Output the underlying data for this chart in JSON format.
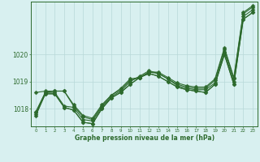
{
  "hours": [
    0,
    1,
    2,
    3,
    4,
    5,
    6,
    7,
    8,
    9,
    10,
    11,
    12,
    13,
    14,
    15,
    16,
    17,
    18,
    19,
    20,
    21,
    22,
    23
  ],
  "series": [
    [
      1017.9,
      1018.6,
      1018.65,
      1018.65,
      1018.1,
      1017.7,
      1017.6,
      1018.1,
      1018.5,
      1018.7,
      1019.05,
      1019.15,
      1019.35,
      1019.3,
      1019.1,
      1018.9,
      1018.8,
      1018.75,
      1018.75,
      1019.05,
      1020.2,
      1019.1,
      1021.5,
      1021.75
    ],
    [
      1017.85,
      1018.6,
      1018.6,
      1018.1,
      1018.05,
      1017.6,
      1017.55,
      1018.05,
      1018.45,
      1018.65,
      1019.0,
      1019.2,
      1019.4,
      1019.3,
      1019.1,
      1018.85,
      1018.75,
      1018.7,
      1018.7,
      1018.95,
      1020.1,
      1019.0,
      1021.4,
      1021.65
    ],
    [
      1017.8,
      1018.55,
      1018.55,
      1018.05,
      1017.95,
      1017.5,
      1017.45,
      1018.0,
      1018.4,
      1018.6,
      1018.9,
      1019.15,
      1019.3,
      1019.2,
      1019.0,
      1018.8,
      1018.7,
      1018.65,
      1018.6,
      1018.9,
      1020.0,
      1018.9,
      1021.3,
      1021.55
    ],
    [
      1018.6,
      1018.65,
      1018.65,
      1018.65,
      1018.15,
      1017.75,
      1017.65,
      1018.15,
      1018.5,
      1018.75,
      1019.1,
      1019.15,
      1019.35,
      1019.35,
      1019.15,
      1018.95,
      1018.85,
      1018.8,
      1018.8,
      1019.1,
      1020.25,
      1019.15,
      1021.55,
      1021.8
    ],
    [
      1017.75,
      1018.55,
      1018.55,
      1018.05,
      1017.95,
      1017.5,
      1017.45,
      1018.0,
      1018.4,
      1018.6,
      1018.9,
      1019.15,
      1019.3,
      1019.2,
      1019.0,
      1018.8,
      1018.7,
      1018.65,
      1018.6,
      1018.9,
      1020.0,
      1018.9,
      1021.3,
      1021.55
    ]
  ],
  "line_color": "#2d6a2d",
  "marker": "D",
  "marker_size": 2.5,
  "bg_color": "#d8f0f0",
  "grid_color": "#b8d8d8",
  "xlabel": "Graphe pression niveau de la mer (hPa)",
  "ytick_labels": [
    "1018",
    "1019",
    "1020"
  ],
  "ytick_values": [
    1018,
    1019,
    1020
  ],
  "xlim": [
    -0.5,
    23.5
  ],
  "ylim": [
    1017.35,
    1021.95
  ]
}
